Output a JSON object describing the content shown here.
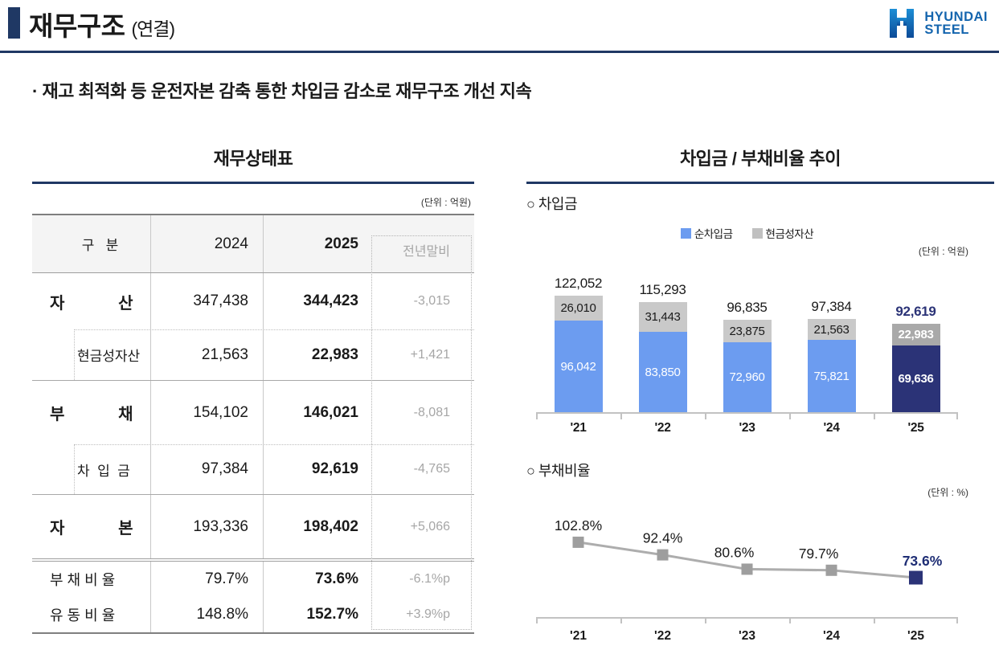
{
  "header": {
    "title": "재무구조",
    "title_suffix": "(연결)",
    "logo": {
      "line1": "HYUNDAI",
      "line2": "STEEL"
    }
  },
  "subtitle": "· 재고 최적화 등 운전자본 감축 통한 차입금 감소로 재무구조 개선 지속",
  "balance_sheet": {
    "title": "재무상태표",
    "unit_label": "(단위 : 억원)",
    "columns": {
      "category": "구   분",
      "y2024": "2024",
      "y2025": "2025",
      "change": "전년말비"
    },
    "rows": [
      {
        "label": "자            산",
        "v2024": "347,438",
        "v2025": "344,423",
        "chg": "-3,015",
        "type": "main"
      },
      {
        "label": "현금성자산",
        "v2024": "21,563",
        "v2025": "22,983",
        "chg": "+1,421",
        "type": "sub"
      },
      {
        "label": "부            채",
        "v2024": "154,102",
        "v2025": "146,021",
        "chg": "-8,081",
        "type": "main"
      },
      {
        "label": "차  입  금",
        "v2024": "97,384",
        "v2025": "92,619",
        "chg": "-4,765",
        "type": "sub"
      },
      {
        "label": "자            본",
        "v2024": "193,336",
        "v2025": "198,402",
        "chg": "+5,066",
        "type": "main"
      },
      {
        "label": "부 채 비 율",
        "v2024": "79.7%",
        "v2025": "73.6%",
        "chg": "-6.1%p",
        "type": "ratio"
      },
      {
        "label": "유 동 비 율",
        "v2024": "148.8%",
        "v2025": "152.7%",
        "chg": "+3.9%p",
        "type": "ratio"
      }
    ]
  },
  "trend_panel": {
    "title": "차입금 / 부채비율 추이",
    "borrowings_label": "○ 차입금",
    "debt_ratio_label": "○ 부채비율"
  },
  "chart_data": [
    {
      "type": "bar",
      "subtype": "stacked",
      "title": "차입금",
      "unit_label": "(단위 : 억원)",
      "categories": [
        "'21",
        "'22",
        "'23",
        "'24",
        "'25"
      ],
      "series": [
        {
          "name": "순차입금",
          "values": [
            96042,
            83850,
            72960,
            75821,
            69636
          ]
        },
        {
          "name": "현금성자산",
          "values": [
            26010,
            31443,
            23875,
            21563,
            22983
          ]
        }
      ],
      "totals": [
        122052,
        115293,
        96835,
        97384,
        92619
      ],
      "legend_position": "top",
      "ylim": [
        0,
        130000
      ],
      "grid": false
    },
    {
      "type": "line",
      "title": "부채비율",
      "unit_label": "(단위 : %)",
      "categories": [
        "'21",
        "'22",
        "'23",
        "'24",
        "'25"
      ],
      "values": [
        102.8,
        92.4,
        80.6,
        79.7,
        73.6
      ],
      "labels": [
        "102.8%",
        "92.4%",
        "80.6%",
        "79.7%",
        "73.6%"
      ],
      "marker": "square",
      "grid": false
    }
  ],
  "colors": {
    "accent_navy": "#1F3864",
    "logo_blue": "#1465AE",
    "bar_blue": "#6C9CF0",
    "bar_navy": "#2B3377",
    "bar_gray": "#C9C9C9",
    "bar_gray_last": "#A9A9A9",
    "line_gray": "#ADADAD",
    "marker_gray": "#9E9E9E",
    "muted_text": "#A6A6A6"
  }
}
